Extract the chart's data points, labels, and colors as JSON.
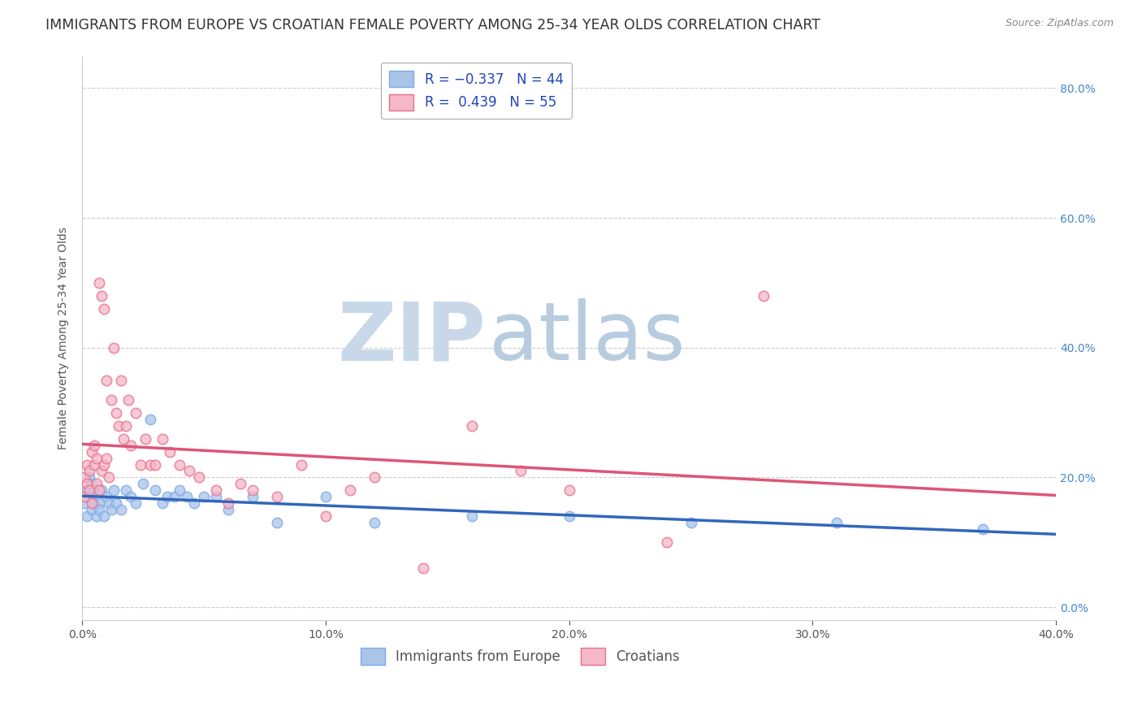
{
  "title": "IMMIGRANTS FROM EUROPE VS CROATIAN FEMALE POVERTY AMONG 25-34 YEAR OLDS CORRELATION CHART",
  "source": "Source: ZipAtlas.com",
  "ylabel": "Female Poverty Among 25-34 Year Olds",
  "background_color": "#ffffff",
  "watermark_zip": "ZIP",
  "watermark_atlas": "atlas",
  "blue_series": {
    "label": "Immigrants from Europe",
    "R": -0.337,
    "N": 44,
    "color": "#aac4e8",
    "edge_color": "#7aabea",
    "trend_color": "#3366bb",
    "x": [
      0.001,
      0.002,
      0.002,
      0.003,
      0.003,
      0.004,
      0.004,
      0.005,
      0.005,
      0.006,
      0.007,
      0.007,
      0.008,
      0.009,
      0.01,
      0.011,
      0.012,
      0.013,
      0.014,
      0.016,
      0.018,
      0.02,
      0.022,
      0.025,
      0.028,
      0.03,
      0.033,
      0.035,
      0.038,
      0.04,
      0.043,
      0.046,
      0.05,
      0.055,
      0.06,
      0.07,
      0.08,
      0.1,
      0.12,
      0.16,
      0.2,
      0.25,
      0.31,
      0.37
    ],
    "y": [
      0.16,
      0.18,
      0.14,
      0.2,
      0.17,
      0.15,
      0.19,
      0.16,
      0.18,
      0.14,
      0.16,
      0.15,
      0.18,
      0.14,
      0.17,
      0.16,
      0.15,
      0.18,
      0.16,
      0.15,
      0.18,
      0.17,
      0.16,
      0.19,
      0.29,
      0.18,
      0.16,
      0.17,
      0.17,
      0.18,
      0.17,
      0.16,
      0.17,
      0.17,
      0.15,
      0.17,
      0.13,
      0.17,
      0.13,
      0.14,
      0.14,
      0.13,
      0.13,
      0.12
    ]
  },
  "pink_series": {
    "label": "Croatians",
    "R": 0.439,
    "N": 55,
    "color": "#f4b8c8",
    "edge_color": "#e87090",
    "trend_color": "#dd5577",
    "x": [
      0.001,
      0.001,
      0.002,
      0.002,
      0.003,
      0.003,
      0.004,
      0.004,
      0.005,
      0.005,
      0.006,
      0.006,
      0.007,
      0.007,
      0.008,
      0.008,
      0.009,
      0.009,
      0.01,
      0.01,
      0.011,
      0.012,
      0.013,
      0.014,
      0.015,
      0.016,
      0.017,
      0.018,
      0.019,
      0.02,
      0.022,
      0.024,
      0.026,
      0.028,
      0.03,
      0.033,
      0.036,
      0.04,
      0.044,
      0.048,
      0.055,
      0.06,
      0.065,
      0.07,
      0.08,
      0.09,
      0.1,
      0.11,
      0.12,
      0.14,
      0.16,
      0.18,
      0.2,
      0.24,
      0.28
    ],
    "y": [
      0.17,
      0.2,
      0.19,
      0.22,
      0.21,
      0.18,
      0.24,
      0.16,
      0.22,
      0.25,
      0.19,
      0.23,
      0.18,
      0.5,
      0.48,
      0.21,
      0.46,
      0.22,
      0.23,
      0.35,
      0.2,
      0.32,
      0.4,
      0.3,
      0.28,
      0.35,
      0.26,
      0.28,
      0.32,
      0.25,
      0.3,
      0.22,
      0.26,
      0.22,
      0.22,
      0.26,
      0.24,
      0.22,
      0.21,
      0.2,
      0.18,
      0.16,
      0.19,
      0.18,
      0.17,
      0.22,
      0.14,
      0.18,
      0.2,
      0.06,
      0.28,
      0.21,
      0.18,
      0.1,
      0.48
    ]
  },
  "xlim": [
    0.0,
    0.4
  ],
  "ylim": [
    -0.02,
    0.85
  ],
  "xticks": [
    0.0,
    0.1,
    0.2,
    0.3,
    0.4
  ],
  "yticks_right": [
    0.0,
    0.2,
    0.4,
    0.6,
    0.8
  ],
  "grid_color": "#cccccc",
  "grid_style": "--",
  "title_fontsize": 12.5,
  "axis_label_fontsize": 10,
  "tick_fontsize": 10,
  "legend_fontsize": 12,
  "watermark_color_zip": "#c8d8e8",
  "watermark_color_atlas": "#b8cce0",
  "watermark_fontsize": 72
}
